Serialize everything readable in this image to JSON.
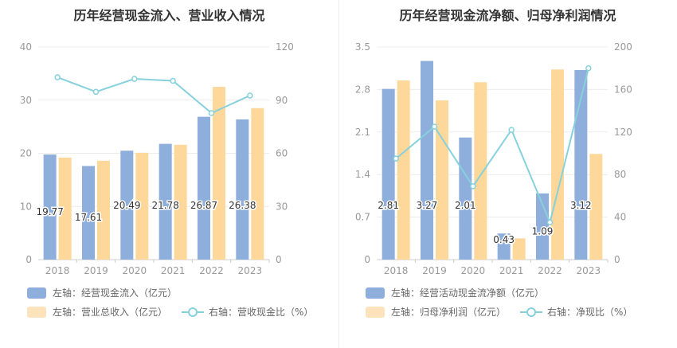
{
  "colors": {
    "bar_blue": "#8eaedc",
    "bar_orange": "#fdd89a",
    "line": "#86d1dc",
    "grid": "#ececec",
    "axis_text": "#999999"
  },
  "chart_data": [
    {
      "type": "bar",
      "title": "历年经营现金流入、营业收入情况",
      "categories": [
        "2018",
        "2019",
        "2020",
        "2021",
        "2022",
        "2023"
      ],
      "left_axis": {
        "ylim": [
          0,
          40
        ],
        "ticks": [
          0,
          10,
          20,
          30,
          40
        ]
      },
      "right_axis": {
        "ylim": [
          0,
          120
        ],
        "ticks": [
          0,
          30,
          60,
          90,
          120
        ]
      },
      "series": [
        {
          "name": "左轴：经营现金流入（亿元）",
          "type": "bar",
          "axis": "left",
          "values": [
            19.77,
            17.61,
            20.49,
            21.78,
            26.87,
            26.38
          ],
          "labels": [
            "19.77",
            "17.61",
            "20.49",
            "21.78",
            "26.87",
            "26.38"
          ]
        },
        {
          "name": "左轴：营业总收入（亿元）",
          "type": "bar",
          "axis": "left",
          "values": [
            19.2,
            18.6,
            20.1,
            21.6,
            32.5,
            28.5
          ]
        },
        {
          "name": "右轴：营收现金比（%）",
          "type": "line",
          "axis": "right",
          "values": [
            102.9,
            94.7,
            102.0,
            100.9,
            82.7,
            92.6
          ]
        }
      ],
      "grid": true,
      "legend": "bottom"
    },
    {
      "type": "bar",
      "title": "历年经营现金流净额、归母净利润情况",
      "categories": [
        "2018",
        "2019",
        "2020",
        "2021",
        "2022",
        "2023"
      ],
      "left_axis": {
        "ylim": [
          0,
          3.5
        ],
        "ticks": [
          0,
          0.7,
          1.4,
          2.1,
          2.8,
          3.5
        ]
      },
      "right_axis": {
        "ylim": [
          0,
          200
        ],
        "ticks": [
          0,
          40,
          80,
          120,
          160,
          200
        ]
      },
      "series": [
        {
          "name": "左轴：经营活动现金流净额（亿元）",
          "type": "bar",
          "axis": "left",
          "values": [
            2.81,
            3.27,
            2.01,
            0.43,
            1.09,
            3.12
          ],
          "labels": [
            "2.81",
            "3.27",
            "2.01",
            "0.43",
            "1.09",
            "3.12"
          ]
        },
        {
          "name": "左轴：归母净利润（亿元）",
          "type": "bar",
          "axis": "left",
          "values": [
            2.95,
            2.62,
            2.92,
            0.35,
            3.13,
            1.74
          ]
        },
        {
          "name": "右轴：净现比（%）",
          "type": "line",
          "axis": "right",
          "values": [
            95,
            125,
            69,
            122,
            35,
            180
          ]
        }
      ],
      "grid": true,
      "legend": "bottom"
    }
  ]
}
